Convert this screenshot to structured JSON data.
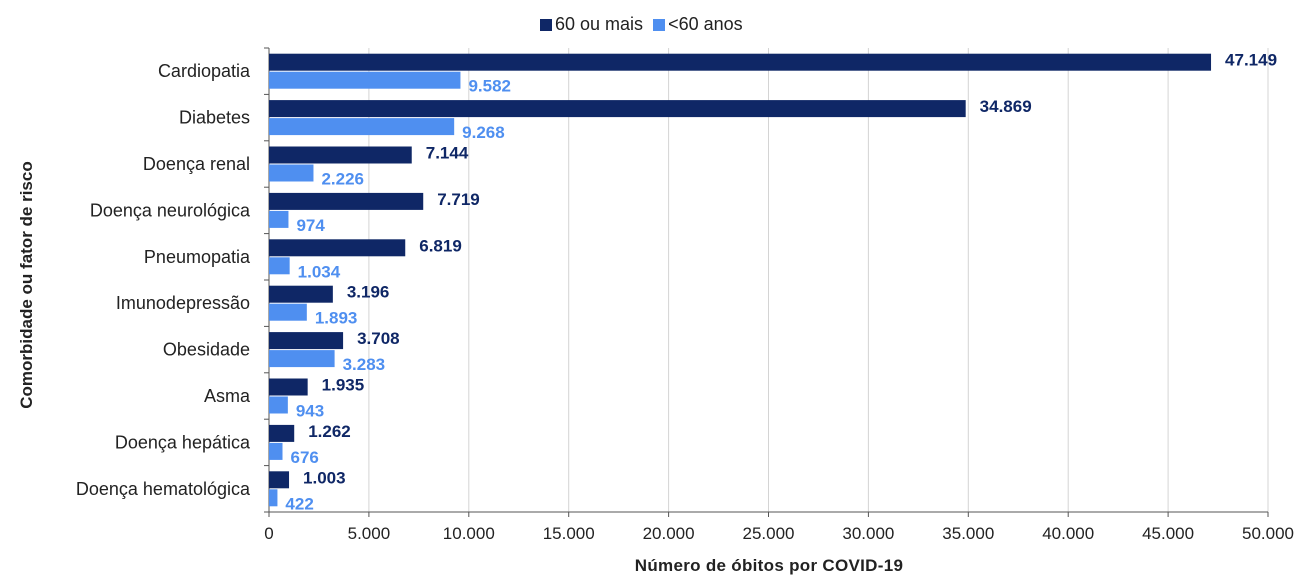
{
  "colors": {
    "older": "#0f2766",
    "younger": "#4f8ff0",
    "grid": "#d4d4d4",
    "axis": "#555555",
    "text": "#222222"
  },
  "chart_data": {
    "type": "bar",
    "orientation": "horizontal",
    "title": "",
    "xlabel": "Número de óbitos por COVID-19",
    "ylabel": "Comorbidade ou fator de risco",
    "xlim": [
      0,
      50000
    ],
    "x_ticks": [
      "0",
      "5.000",
      "10.000",
      "15.000",
      "20.000",
      "25.000",
      "30.000",
      "35.000",
      "40.000",
      "45.000",
      "50.000"
    ],
    "x_tick_values": [
      0,
      5000,
      10000,
      15000,
      20000,
      25000,
      30000,
      35000,
      40000,
      45000,
      50000
    ],
    "grid": true,
    "legend_position": "top",
    "categories": [
      "Cardiopatia",
      "Diabetes",
      "Doença renal",
      "Doença neurológica",
      "Pneumopatia",
      "Imunodepressão",
      "Obesidade",
      "Asma",
      "Doença hepática",
      "Doença hematológica"
    ],
    "series": [
      {
        "name": "60 ou mais",
        "values": [
          47149,
          34869,
          7144,
          7719,
          6819,
          3196,
          3708,
          1935,
          1262,
          1003
        ],
        "labels": [
          "47.149",
          "34.869",
          "7.144",
          "7.719",
          "6.819",
          "3.196",
          "3.708",
          "1.935",
          "1.262",
          "1.003"
        ]
      },
      {
        "name": "<60 anos",
        "values": [
          9582,
          9268,
          2226,
          974,
          1034,
          1893,
          3283,
          943,
          676,
          422
        ],
        "labels": [
          "9.582",
          "9.268",
          "2.226",
          "974",
          "1.034",
          "1.893",
          "3.283",
          "943",
          "676",
          "422"
        ]
      }
    ]
  }
}
